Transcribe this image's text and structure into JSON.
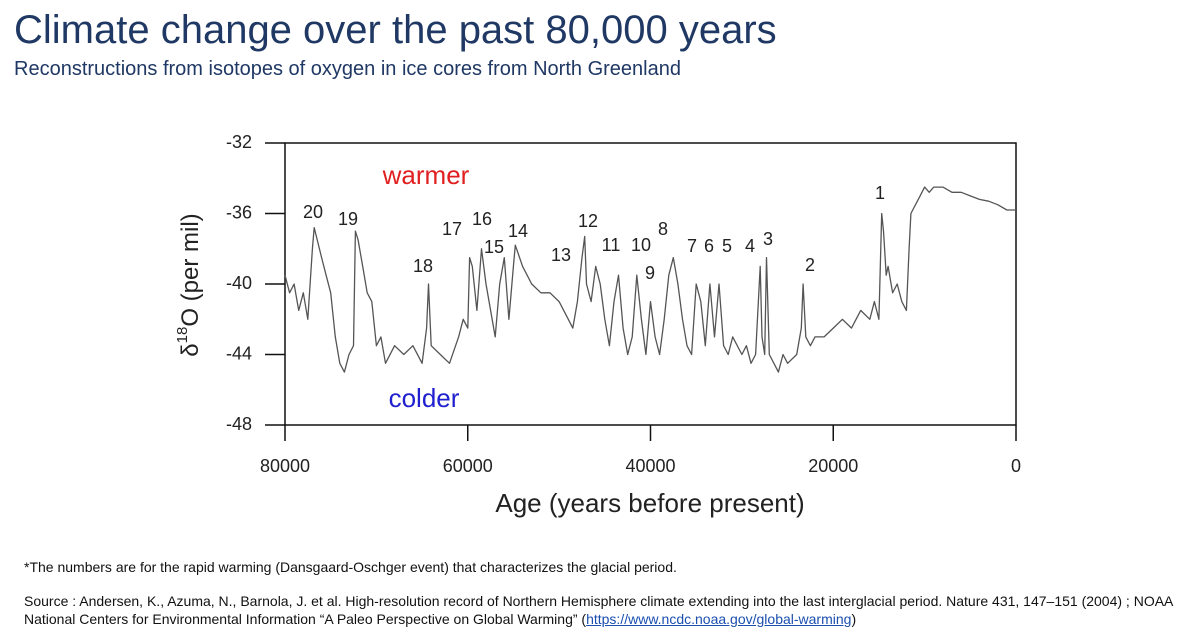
{
  "header": {
    "title": "Climate change over the past 80,000 years",
    "subtitle": "Reconstructions from isotopes of oxygen in ice cores from North Greenland"
  },
  "chart_data": {
    "type": "line",
    "y_label": [
      "δ",
      "18",
      "O (per mil)"
    ],
    "x_label": "Age (years before present)",
    "xlim": [
      80000,
      0
    ],
    "ylim": [
      -48,
      -32
    ],
    "xticks": [
      80000,
      60000,
      40000,
      20000,
      0
    ],
    "yticks": [
      -32,
      -36,
      -40,
      -44,
      -48
    ],
    "color": "#555555",
    "x": [
      80000,
      79500,
      79000,
      78500,
      78000,
      77500,
      77000,
      76800,
      76000,
      75500,
      75000,
      74500,
      74000,
      73500,
      73000,
      72500,
      72300,
      72000,
      71500,
      71000,
      70500,
      70000,
      69500,
      69000,
      68000,
      67000,
      66000,
      65000,
      64500,
      64300,
      64000,
      63000,
      62000,
      61000,
      60500,
      60000,
      59800,
      59500,
      59000,
      58500,
      58000,
      57500,
      57000,
      56500,
      56000,
      55500,
      55000,
      54800,
      54000,
      53000,
      52000,
      51000,
      50000,
      49500,
      49000,
      48500,
      48000,
      47500,
      47200,
      47000,
      46500,
      46000,
      45500,
      45000,
      44500,
      44000,
      43500,
      43000,
      42500,
      42000,
      41500,
      41000,
      40500,
      40000,
      39500,
      39000,
      38500,
      38000,
      37500,
      37000,
      36500,
      36000,
      35500,
      35000,
      34500,
      34000,
      33500,
      33000,
      32500,
      32000,
      31500,
      31000,
      30000,
      29500,
      29000,
      28500,
      28000,
      27800,
      27500,
      27300,
      27000,
      26500,
      26000,
      25500,
      25000,
      24000,
      23500,
      23300,
      23000,
      22500,
      22000,
      21000,
      20000,
      19000,
      18000,
      17000,
      16000,
      15500,
      15000,
      14700,
      14500,
      14200,
      14000,
      13500,
      13000,
      12500,
      12000,
      11700,
      11500,
      11000,
      10500,
      10000,
      9500,
      9000,
      8000,
      7000,
      6000,
      5000,
      4000,
      3000,
      2000,
      1000,
      0
    ],
    "values": [
      -39.5,
      -40.5,
      -40,
      -41.5,
      -40.5,
      -42,
      -38,
      -36.8,
      -38.5,
      -39.5,
      -40.5,
      -43,
      -44.5,
      -45,
      -44,
      -43.5,
      -37,
      -37.5,
      -39,
      -40.5,
      -41,
      -43.5,
      -43,
      -44.5,
      -43.5,
      -44,
      -43.5,
      -44.5,
      -42.5,
      -40,
      -43.5,
      -44,
      -44.5,
      -43,
      -42,
      -42.5,
      -38.5,
      -39,
      -41.5,
      -38,
      -40,
      -41.5,
      -43,
      -40,
      -38.5,
      -42,
      -39,
      -37.8,
      -39,
      -40,
      -40.5,
      -40.5,
      -41,
      -41.5,
      -42,
      -42.5,
      -41,
      -38.5,
      -37.3,
      -40,
      -41,
      -39,
      -40,
      -42,
      -43.5,
      -41,
      -39.5,
      -42.5,
      -44,
      -43,
      -39.5,
      -42,
      -44,
      -41,
      -43,
      -44,
      -42,
      -39.5,
      -38.5,
      -40,
      -42,
      -43.5,
      -44,
      -40,
      -41,
      -43.5,
      -40,
      -43,
      -40,
      -43.5,
      -44,
      -43,
      -44,
      -43.5,
      -44.5,
      -44,
      -39,
      -43,
      -44,
      -38.5,
      -44,
      -44.5,
      -45,
      -44,
      -44.5,
      -44,
      -42.5,
      -40,
      -43,
      -43.5,
      -43,
      -43,
      -42.5,
      -42,
      -42.5,
      -41.5,
      -42,
      -41,
      -42,
      -36,
      -37,
      -39.5,
      -39,
      -40.5,
      -40,
      -41,
      -41.5,
      -38,
      -36,
      -35.5,
      -35,
      -34.5,
      -34.8,
      -34.5,
      -34.5,
      -34.8,
      -34.8,
      -35,
      -35.2,
      -35.3,
      -35.5,
      -35.8,
      -35.8
    ],
    "event_labels": [
      "20",
      "19",
      "18",
      "17",
      "16",
      "15",
      "14",
      "13",
      "12",
      "11",
      "10",
      "9",
      "8",
      "7",
      "6",
      "5",
      "4",
      "3",
      "2",
      "1"
    ],
    "warm_label": "warmer",
    "cold_label": "colder"
  },
  "notes": {
    "footnote": "*The numbers are for the rapid warming (Dansgaard-Oschger event) that characterizes the glacial period.",
    "source": "Source :  Andersen, K., Azuma, N., Barnola, J. et al. High-resolution record of Northern Hemisphere climate extending into the last interglacial period. Nature 431, 147–151 (2004) ; NOAA National Centers for Environmental Information “A Paleo Perspective on Global Warming” (",
    "link": "https://www.ncdc.noaa.gov/global-warming",
    "close": ")"
  }
}
